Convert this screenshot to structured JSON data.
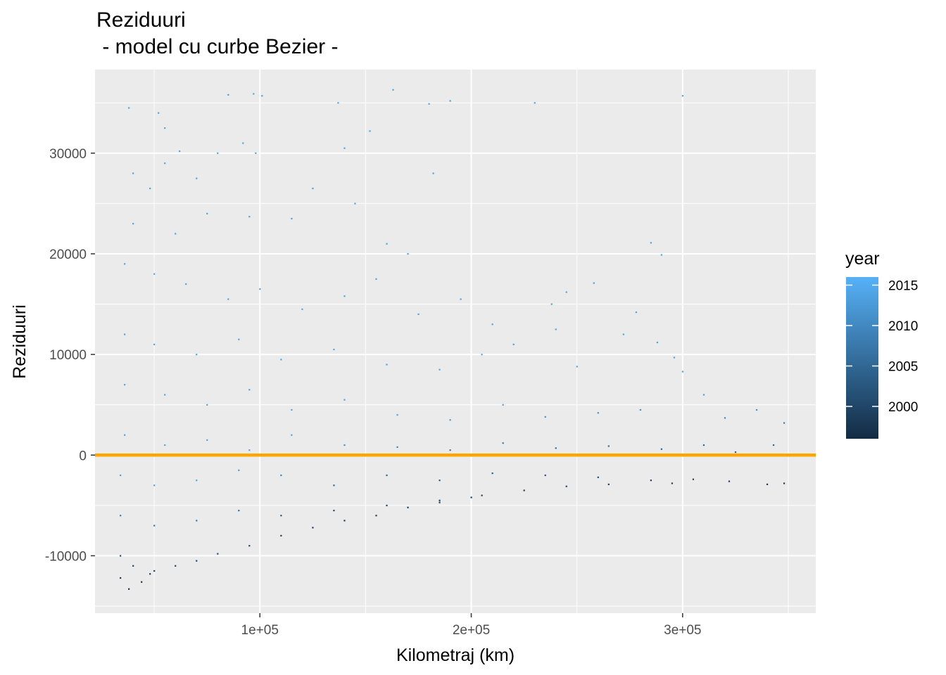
{
  "chart_data": {
    "type": "scatter",
    "title": "Reziduuri",
    "subtitle": " - model cu curbe Bezier -",
    "xlabel": "Kilometraj (km)",
    "ylabel": "Reziduuri",
    "xlim": [
      22000,
      363000
    ],
    "ylim": [
      -15700,
      38300
    ],
    "x_ticks": [
      100000,
      200000,
      300000
    ],
    "x_tick_labels": [
      "1e+05",
      "2e+05",
      "3e+05"
    ],
    "y_ticks": [
      -10000,
      0,
      10000,
      20000,
      30000
    ],
    "y_tick_labels": [
      "-10000",
      "0",
      "10000",
      "20000",
      "30000"
    ],
    "grid": true,
    "panel_background": "#ebebeb",
    "grid_color": "#ffffff",
    "reference_line": {
      "y": 0,
      "color": "#FFA500"
    },
    "color_scale": {
      "name": "year",
      "low_color": "#132B43",
      "high_color": "#56B1F7",
      "range": [
        1996,
        2016
      ],
      "breaks": [
        2000,
        2005,
        2010,
        2015
      ],
      "break_labels": [
        "2000",
        "2005",
        "2010",
        "2015"
      ],
      "legend_position": "right"
    },
    "series": [
      {
        "points": [
          [
            38000,
            34500
          ],
          [
            52000,
            34000
          ],
          [
            55000,
            32500
          ],
          [
            62000,
            30200
          ],
          [
            85000,
            35800
          ],
          [
            97000,
            35900
          ],
          [
            101000,
            35700
          ],
          [
            137000,
            35000
          ],
          [
            163000,
            36300
          ],
          [
            180000,
            34900
          ],
          [
            190000,
            35200
          ],
          [
            230000,
            35000
          ],
          [
            300000,
            35700
          ],
          [
            40000,
            28000
          ],
          [
            48000,
            26500
          ],
          [
            55000,
            29000
          ],
          [
            70000,
            27500
          ],
          [
            80000,
            30000
          ],
          [
            92000,
            31000
          ],
          [
            98000,
            30000
          ],
          [
            125000,
            26500
          ],
          [
            140000,
            30500
          ],
          [
            152000,
            32200
          ],
          [
            182000,
            28000
          ],
          [
            40000,
            23000
          ],
          [
            60000,
            22000
          ],
          [
            75000,
            24000
          ],
          [
            95000,
            23700
          ],
          [
            115000,
            23500
          ],
          [
            145000,
            25000
          ],
          [
            160000,
            21000
          ],
          [
            170000,
            20000
          ],
          [
            285000,
            21100
          ],
          [
            290000,
            19900
          ],
          [
            36000,
            19000
          ],
          [
            50000,
            18000
          ],
          [
            65000,
            17000
          ],
          [
            85000,
            15500
          ],
          [
            100000,
            16500
          ],
          [
            120000,
            14500
          ],
          [
            140000,
            15800
          ],
          [
            155000,
            17500
          ],
          [
            175000,
            14000
          ],
          [
            195000,
            15500
          ],
          [
            210000,
            13000
          ],
          [
            238000,
            15000
          ],
          [
            245000,
            16200
          ],
          [
            258000,
            17100
          ],
          [
            278000,
            14200
          ],
          [
            36000,
            12000
          ],
          [
            50000,
            11000
          ],
          [
            70000,
            10000
          ],
          [
            90000,
            11500
          ],
          [
            110000,
            9500
          ],
          [
            135000,
            10500
          ],
          [
            160000,
            9000
          ],
          [
            185000,
            8500
          ],
          [
            205000,
            10000
          ],
          [
            220000,
            11000
          ],
          [
            240000,
            12500
          ],
          [
            250000,
            8800
          ],
          [
            272000,
            12000
          ],
          [
            288000,
            11200
          ],
          [
            296000,
            9700
          ],
          [
            36000,
            7000
          ],
          [
            55000,
            6000
          ],
          [
            75000,
            5000
          ],
          [
            95000,
            6500
          ],
          [
            115000,
            4500
          ],
          [
            140000,
            5500
          ],
          [
            165000,
            4000
          ],
          [
            190000,
            3500
          ],
          [
            215000,
            5000
          ],
          [
            235000,
            3800
          ],
          [
            260000,
            4200
          ],
          [
            280000,
            4500
          ],
          [
            300000,
            8300
          ],
          [
            310000,
            6000
          ],
          [
            320000,
            3700
          ],
          [
            335000,
            4500
          ],
          [
            348000,
            3200
          ],
          [
            36000,
            2000
          ],
          [
            55000,
            1000
          ],
          [
            75000,
            1500
          ],
          [
            95000,
            500
          ],
          [
            115000,
            2000
          ],
          [
            140000,
            1000
          ],
          [
            165000,
            800
          ],
          [
            190000,
            500
          ],
          [
            215000,
            1200
          ],
          [
            240000,
            700
          ],
          [
            265000,
            900
          ],
          [
            290000,
            600
          ],
          [
            310000,
            1000
          ],
          [
            325000,
            300
          ],
          [
            343000,
            1000
          ],
          [
            34000,
            -2000
          ],
          [
            50000,
            -3000
          ],
          [
            70000,
            -2500
          ],
          [
            90000,
            -1500
          ],
          [
            110000,
            -2000
          ],
          [
            135000,
            -3000
          ],
          [
            160000,
            -2000
          ],
          [
            185000,
            -2500
          ],
          [
            210000,
            -1800
          ],
          [
            235000,
            -2000
          ],
          [
            260000,
            -2200
          ],
          [
            285000,
            -2500
          ],
          [
            305000,
            -2400
          ],
          [
            322000,
            -2600
          ],
          [
            340000,
            -2900
          ],
          [
            348000,
            -2800
          ],
          [
            34000,
            -6000
          ],
          [
            50000,
            -7000
          ],
          [
            70000,
            -6500
          ],
          [
            90000,
            -5500
          ],
          [
            110000,
            -6000
          ],
          [
            135000,
            -5500
          ],
          [
            160000,
            -5000
          ],
          [
            185000,
            -4500
          ],
          [
            205000,
            -4000
          ],
          [
            225000,
            -3500
          ],
          [
            245000,
            -3100
          ],
          [
            265000,
            -2900
          ],
          [
            295000,
            -2800
          ],
          [
            34000,
            -10000
          ],
          [
            40000,
            -11000
          ],
          [
            50000,
            -11500
          ],
          [
            60000,
            -11000
          ],
          [
            70000,
            -10500
          ],
          [
            80000,
            -9800
          ],
          [
            95000,
            -9000
          ],
          [
            110000,
            -8000
          ],
          [
            125000,
            -7200
          ],
          [
            140000,
            -6500
          ],
          [
            155000,
            -6000
          ],
          [
            170000,
            -5200
          ],
          [
            185000,
            -4700
          ],
          [
            200000,
            -4200
          ],
          [
            34000,
            -12200
          ],
          [
            38000,
            -13300
          ],
          [
            44000,
            -12600
          ],
          [
            48000,
            -11800
          ]
        ]
      }
    ]
  }
}
